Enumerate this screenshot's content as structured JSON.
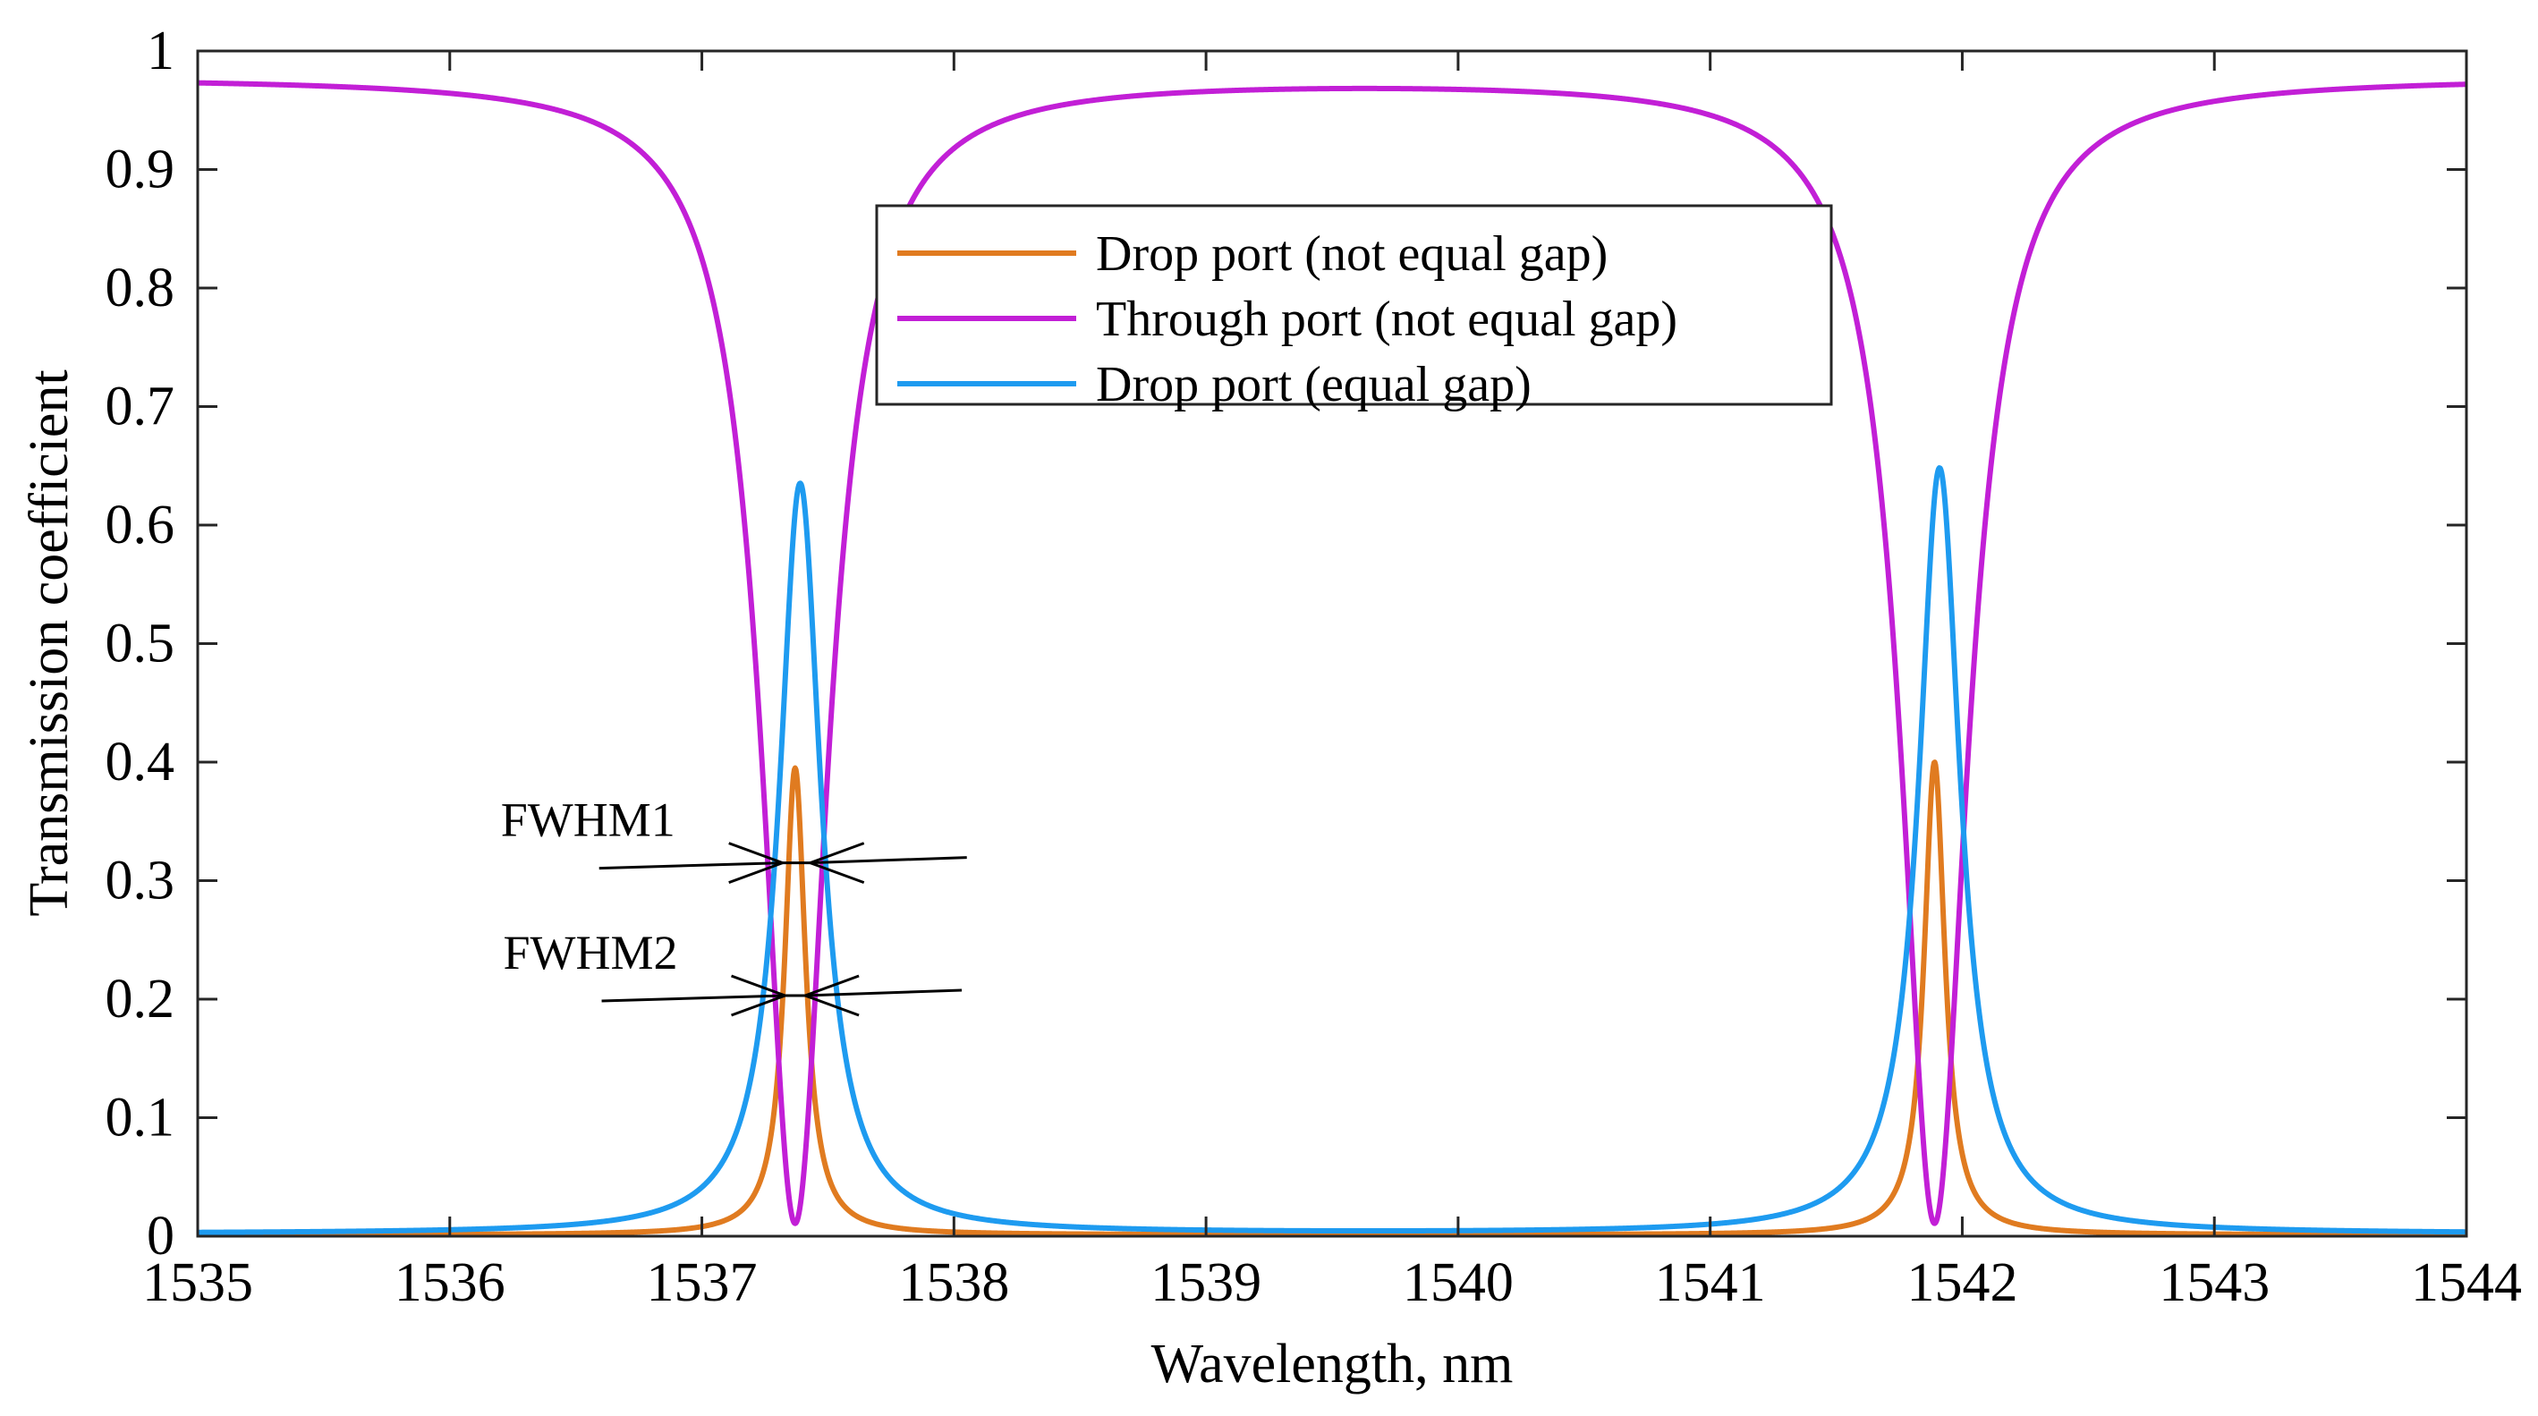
{
  "chart_data": {
    "type": "line",
    "title": "",
    "xlabel": "Wavelength, nm",
    "ylabel": "Transmission coefficient",
    "xlim": [
      1535,
      1544
    ],
    "ylim": [
      0,
      1
    ],
    "xticks": [
      1535,
      1536,
      1537,
      1538,
      1539,
      1540,
      1541,
      1542,
      1543,
      1544
    ],
    "yticks": [
      0,
      0.1,
      0.2,
      0.3,
      0.4,
      0.5,
      0.6,
      0.7,
      0.8,
      0.9,
      1
    ],
    "ytick_labels": [
      "0",
      "0.1",
      "0.2",
      "0.3",
      "0.4",
      "0.5",
      "0.6",
      "0.7",
      "0.8",
      "0.9",
      "1"
    ],
    "grid": false,
    "legend_position": "top-center",
    "series": [
      {
        "name": "Drop port (not equal gap)",
        "color": "#E07B20",
        "model": "lorentzian",
        "peaks": [
          {
            "center": 1537.37,
            "value": 0.395,
            "fwhm": 0.1
          },
          {
            "center": 1541.89,
            "value": 0.4,
            "fwhm": 0.1
          }
        ],
        "baseline": 0.001
      },
      {
        "name": "Through port (not equal gap)",
        "color": "#C21FD6",
        "model": "lorentzian-dip",
        "peaks": [
          {
            "center": 1537.37,
            "value": 0.012,
            "fwhm": 0.32
          },
          {
            "center": 1541.89,
            "value": 0.012,
            "fwhm": 0.32
          }
        ],
        "baseline": 0.978
      },
      {
        "name": "Drop port (equal gap)",
        "color": "#1E9BF0",
        "model": "lorentzian",
        "peaks": [
          {
            "center": 1537.39,
            "value": 0.635,
            "fwhm": 0.2
          },
          {
            "center": 1541.91,
            "value": 0.648,
            "fwhm": 0.2
          }
        ],
        "baseline": 0.002
      }
    ],
    "annotations": [
      {
        "text": "FWHM1",
        "y": 0.315,
        "x_left": 1537.32,
        "x_right": 1537.43
      },
      {
        "text": "FWHM2",
        "y": 0.203,
        "x_left": 1537.33,
        "x_right": 1537.41
      }
    ]
  }
}
